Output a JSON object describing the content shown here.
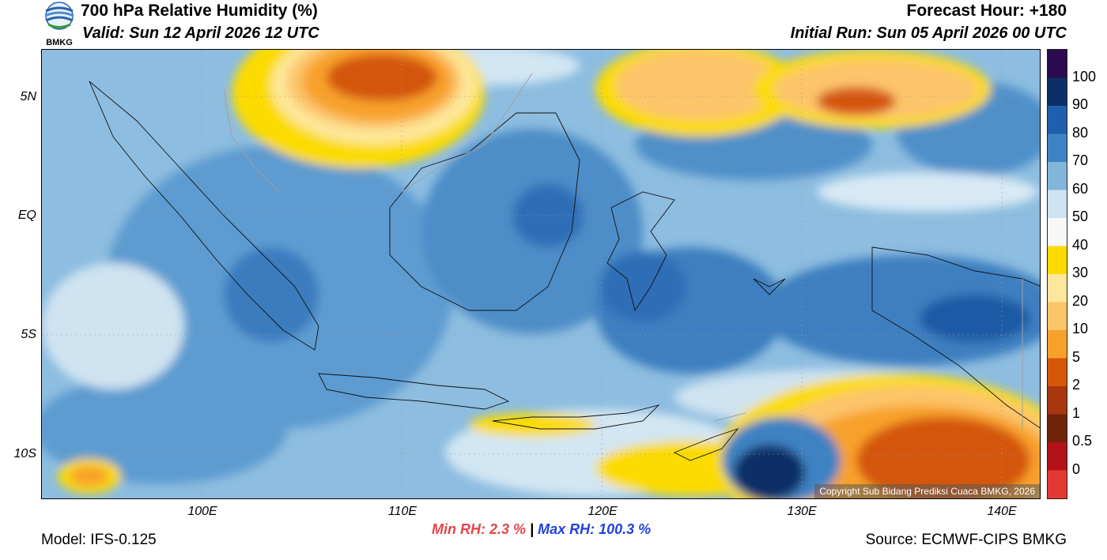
{
  "header": {
    "title": "700 hPa Relative Humidity (%)",
    "valid": "Valid: Sun 12 April 2026 12 UTC",
    "forecast_hour": "Forecast Hour: +180",
    "initial_run": "Initial Run: Sun 05 April 2026 00 UTC",
    "logo_text": "BMKG"
  },
  "map": {
    "lat_labels": [
      "5N",
      "EQ",
      "5S",
      "10S"
    ],
    "lon_labels": [
      "100E",
      "110E",
      "120E",
      "130E",
      "140E"
    ],
    "copyright": "Copyright Sub Bidang Prediksi Cuaca BMKG, 2026"
  },
  "colorbar": {
    "labels": [
      "100",
      "90",
      "80",
      "70",
      "60",
      "50",
      "40",
      "30",
      "20",
      "10",
      "5",
      "2",
      "1",
      "0.5",
      "0"
    ],
    "colors": [
      "#2b0a4f",
      "#0d2f66",
      "#1f5fad",
      "#3d82c2",
      "#80b6da",
      "#cfe3f1",
      "#f7f7f7",
      "#fbdb00",
      "#fde79a",
      "#fcc56a",
      "#f8a12a",
      "#d45608",
      "#a8360f",
      "#6f2309",
      "#b31218",
      "#e23a33"
    ]
  },
  "stats": {
    "min_label": "Min RH:",
    "min_value": "2.3 %",
    "sep": "|",
    "max_label": "Max RH:",
    "max_value": "100.3 %",
    "min_color": "#e8454a",
    "max_color": "#2241e0"
  },
  "footer": {
    "model": "Model: IFS-0.125",
    "source": "Source: ECMWF-CIPS BMKG"
  }
}
